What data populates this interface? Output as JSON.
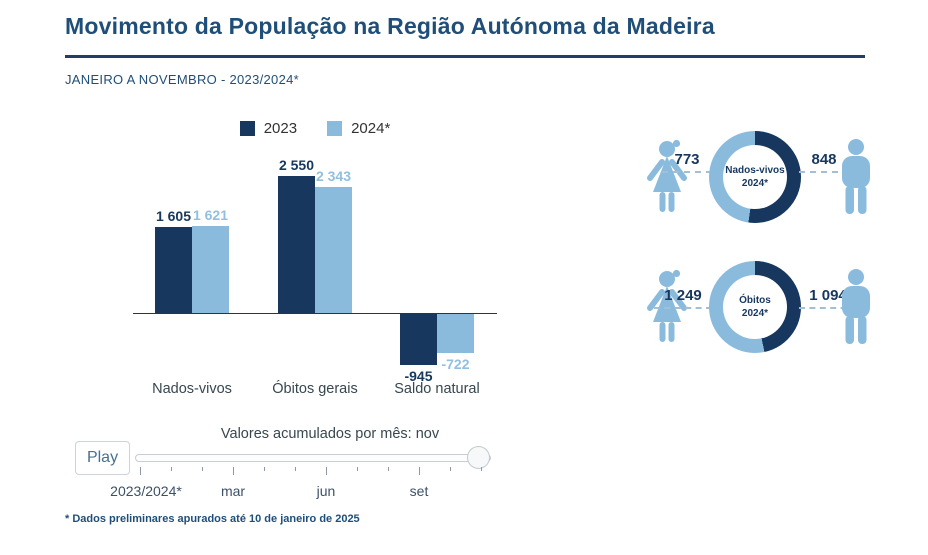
{
  "page": {
    "title": "Movimento da População na Região Autónoma da Madeira",
    "subtitle": "JANEIRO A NOVEMBRO - 2023/2024*",
    "footnote": "* Dados preliminares apurados até 10 de janeiro de 2025"
  },
  "colors": {
    "title_navy": "#1f4e79",
    "series_dark": "#17375e",
    "series_light": "#8abbdd",
    "light_value_label": "#92bfe0",
    "axis_text": "#3c5166"
  },
  "chart_data": [
    {
      "type": "bar",
      "categories": [
        "Nados-vivos",
        "Óbitos gerais",
        "Saldo natural"
      ],
      "series": [
        {
          "name": "2023",
          "color": "#17375e",
          "values": [
            1605,
            2550,
            -945
          ],
          "labels": [
            "1 605",
            "2 550",
            "-945"
          ]
        },
        {
          "name": "2024*",
          "color": "#8abbdd",
          "values": [
            1621,
            2343,
            -722
          ],
          "labels": [
            "1 621",
            "2 343",
            "-722"
          ]
        }
      ],
      "ylabel": "",
      "xlabel": "",
      "legend_position": "top",
      "grid": false,
      "baseline": 0
    },
    {
      "type": "pie",
      "center_label": [
        "Nados-vivos",
        "2024*"
      ],
      "slices": [
        {
          "group": "female",
          "value": 773,
          "label": "773",
          "color": "#8abbdd"
        },
        {
          "group": "male",
          "value": 848,
          "label": "848",
          "color": "#17375e"
        }
      ]
    },
    {
      "type": "pie",
      "center_label": [
        "Óbitos",
        "2024*"
      ],
      "slices": [
        {
          "group": "female",
          "value": 1249,
          "label": "1 249",
          "color": "#8abbdd"
        },
        {
          "group": "male",
          "value": 1094,
          "label": "1 094",
          "color": "#17375e"
        }
      ]
    }
  ],
  "slider": {
    "label": "Valores acumulados por mês: nov",
    "current_month": "nov",
    "play_label": "Play",
    "axis_labels": [
      "2023/2024*",
      "mar",
      "jun",
      "set"
    ]
  }
}
